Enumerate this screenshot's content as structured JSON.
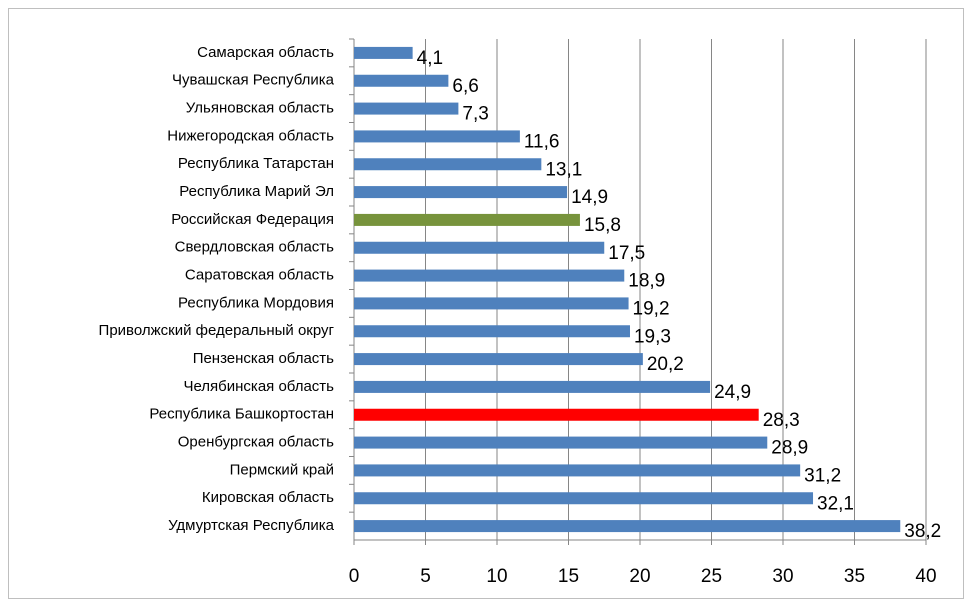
{
  "chart_data": {
    "type": "bar",
    "orientation": "horizontal",
    "categories": [
      "Самарская область",
      "Чувашская Республика",
      "Ульяновская область",
      "Нижегородская область",
      "Республика Татарстан",
      "Республика Марий Эл",
      "Российская Федерация",
      "Свердловская область",
      "Саратовская область ",
      "Республика Мордовия",
      "Приволжский федеральный округ",
      "Пензенская область",
      "Челябинская область",
      "Республика Башкортостан",
      "Оренбургская область",
      "Пермский край ",
      "Кировская область",
      "Удмуртская Республика"
    ],
    "values": [
      4.1,
      6.6,
      7.3,
      11.6,
      13.1,
      14.9,
      15.8,
      17.5,
      18.9,
      19.2,
      19.3,
      20.2,
      24.9,
      28.3,
      28.9,
      31.2,
      32.1,
      38.2
    ],
    "value_labels": [
      "4,1",
      "6,6",
      "7,3",
      "11,6",
      "13,1",
      "14,9",
      "15,8",
      "17,5",
      "18,9",
      "19,2",
      "19,3",
      "20,2",
      "24,9",
      "28,3",
      "28,9",
      "31,2",
      "32,1",
      "38,2"
    ],
    "colors": [
      "#4f81bd",
      "#4f81bd",
      "#4f81bd",
      "#4f81bd",
      "#4f81bd",
      "#4f81bd",
      "#77933c",
      "#4f81bd",
      "#4f81bd",
      "#4f81bd",
      "#4f81bd",
      "#4f81bd",
      "#4f81bd",
      "#ff0000",
      "#4f81bd",
      "#4f81bd",
      "#4f81bd",
      "#4f81bd"
    ],
    "xlim": [
      0,
      40
    ],
    "xticks": [
      0,
      5,
      10,
      15,
      20,
      25,
      30,
      35,
      40
    ],
    "grid": true
  }
}
